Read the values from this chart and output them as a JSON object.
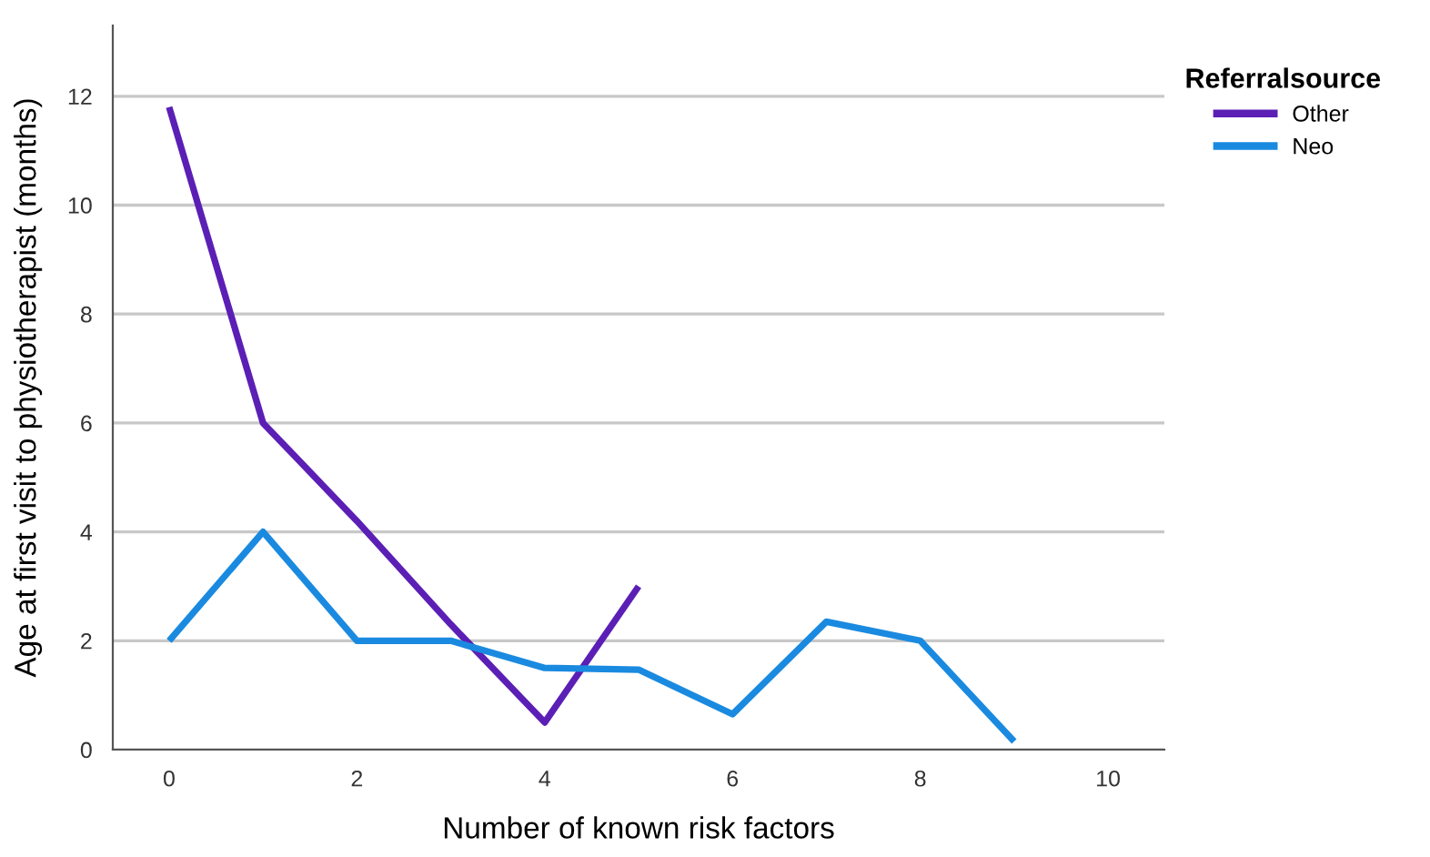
{
  "chart_data": {
    "type": "line",
    "xlabel": "Number of known risk factors",
    "ylabel": "Age at first visit to physiotherapist (months)",
    "legend_title": "Referralsource",
    "legend": "right",
    "grid": "y",
    "marker": "none",
    "line_style": "solid",
    "series": [
      {
        "name": "Other",
        "color": "#5b1fb5",
        "x": [
          0,
          1,
          2,
          3,
          4,
          5
        ],
        "values": [
          11.8,
          6.0,
          4.2,
          2.3,
          0.5,
          3.0
        ]
      },
      {
        "name": "Neo",
        "color": "#1a8ae0",
        "x": [
          0,
          1,
          2,
          3,
          4,
          5,
          6,
          7,
          8,
          9
        ],
        "values": [
          2.0,
          4.0,
          2.0,
          2.0,
          1.5,
          1.47,
          0.65,
          2.35,
          2.0,
          0.15
        ]
      }
    ],
    "xlim": [
      -0.6,
      10.6
    ],
    "xticks": [
      0,
      2,
      4,
      6,
      8,
      10
    ],
    "ylim": [
      0,
      13.3
    ],
    "yticks": [
      0,
      2,
      4,
      6,
      8,
      10,
      12
    ]
  }
}
